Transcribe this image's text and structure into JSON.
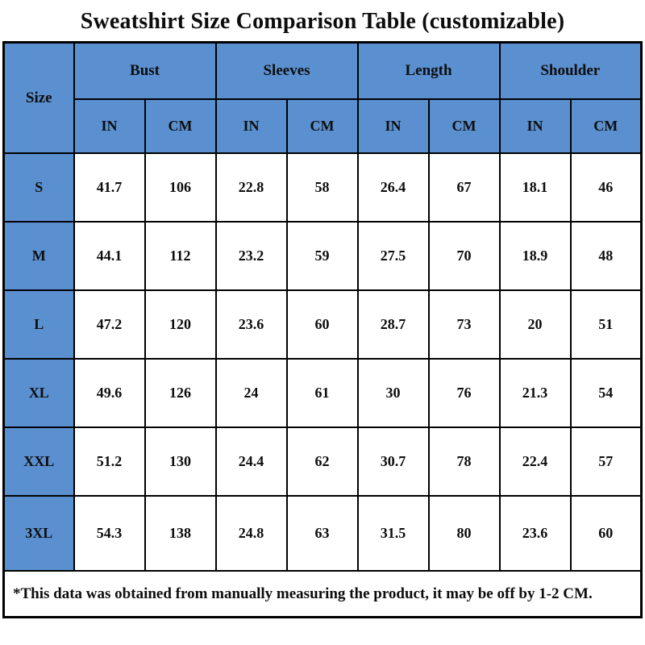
{
  "title": "Sweatshirt Size Comparison Table (customizable)",
  "colors": {
    "header_blue": "#5b90d0",
    "border_black": "#000000",
    "cell_white": "#ffffff"
  },
  "table": {
    "size_header": "Size",
    "groups": [
      {
        "label": "Bust",
        "units": [
          "IN",
          "CM"
        ]
      },
      {
        "label": "Sleeves",
        "units": [
          "IN",
          "CM"
        ]
      },
      {
        "label": "Length",
        "units": [
          "IN",
          "CM"
        ]
      },
      {
        "label": "Shoulder",
        "units": [
          "IN",
          "CM"
        ]
      }
    ],
    "rows": [
      {
        "size": "S",
        "values": [
          "41.7",
          "106",
          "22.8",
          "58",
          "26.4",
          "67",
          "18.1",
          "46"
        ]
      },
      {
        "size": "M",
        "values": [
          "44.1",
          "112",
          "23.2",
          "59",
          "27.5",
          "70",
          "18.9",
          "48"
        ]
      },
      {
        "size": "L",
        "values": [
          "47.2",
          "120",
          "23.6",
          "60",
          "28.7",
          "73",
          "20",
          "51"
        ]
      },
      {
        "size": "XL",
        "values": [
          "49.6",
          "126",
          "24",
          "61",
          "30",
          "76",
          "21.3",
          "54"
        ]
      },
      {
        "size": "XXL",
        "values": [
          "51.2",
          "130",
          "24.4",
          "62",
          "30.7",
          "78",
          "22.4",
          "57"
        ]
      },
      {
        "size": "3XL",
        "values": [
          "54.3",
          "138",
          "24.8",
          "63",
          "31.5",
          "80",
          "23.6",
          "60"
        ]
      }
    ],
    "footnote": "*This data was obtained from manually measuring the product, it may be off by 1-2 CM."
  }
}
